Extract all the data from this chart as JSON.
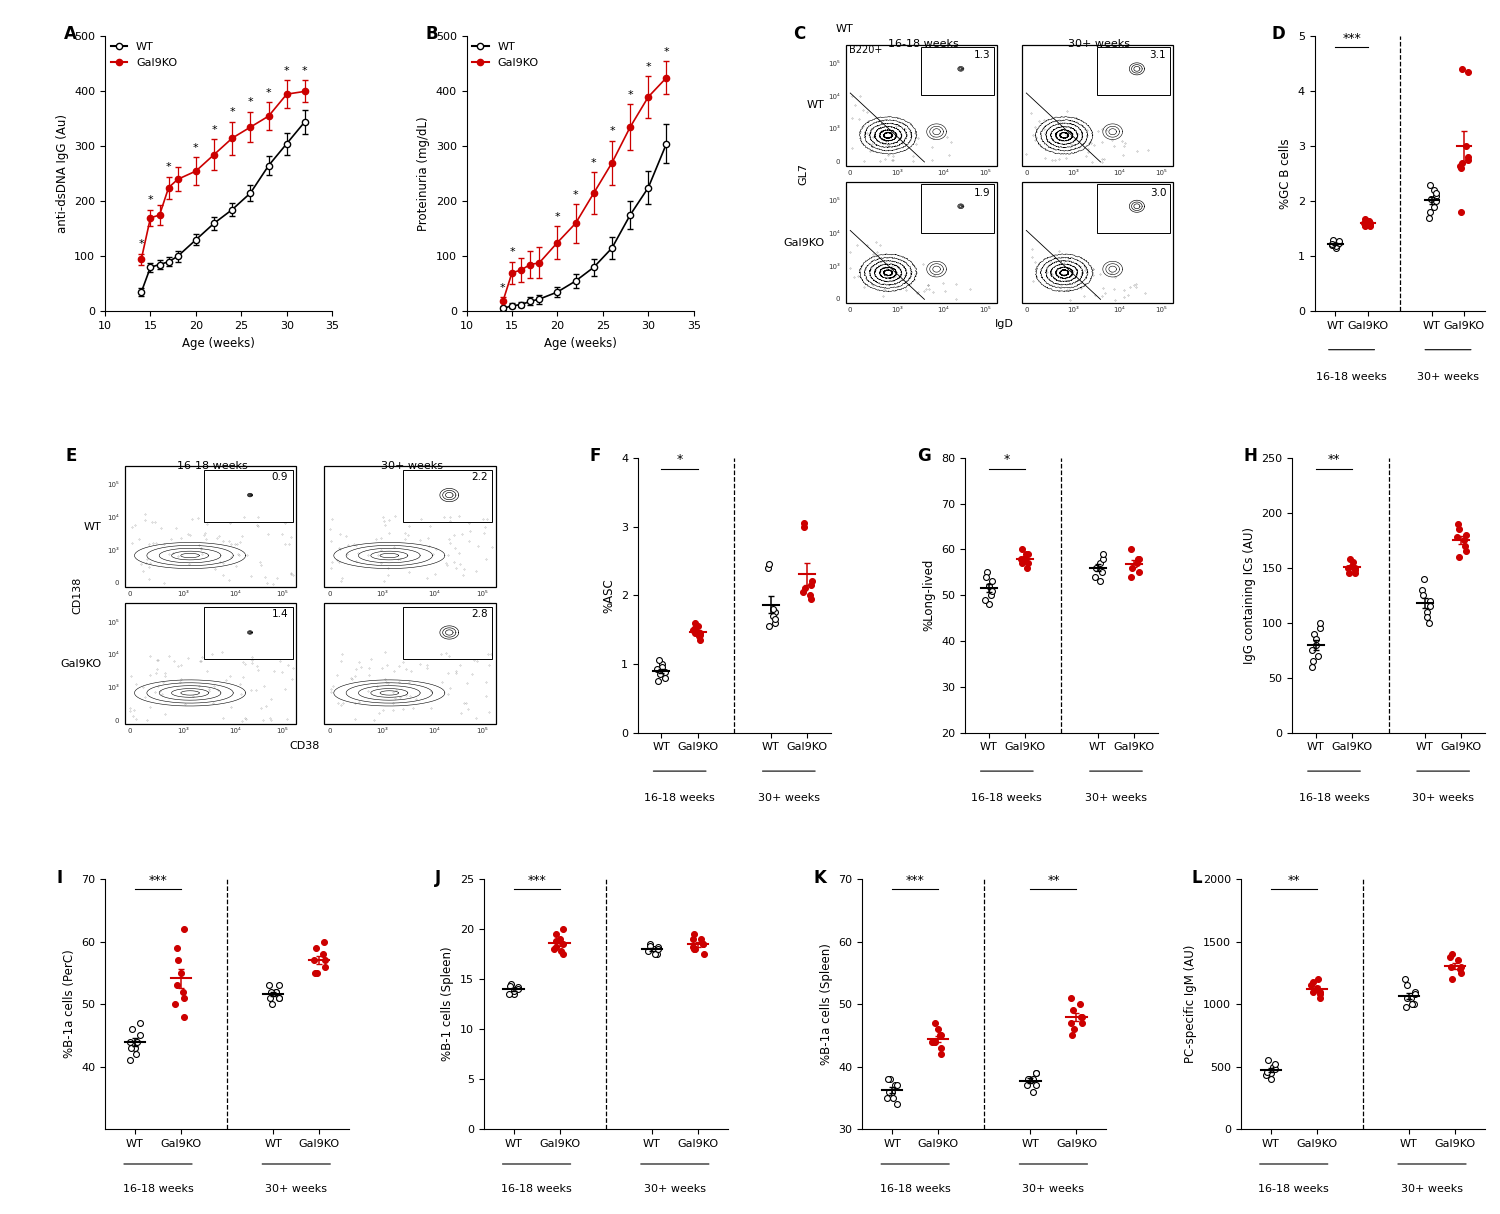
{
  "panel_A": {
    "label": "A",
    "xlabel": "Age (weeks)",
    "ylabel": "anti-dsDNA IgG (Au)",
    "xlim": [
      10,
      35
    ],
    "ylim": [
      0,
      500
    ],
    "xticks": [
      10,
      15,
      20,
      25,
      30,
      35
    ],
    "yticks": [
      0,
      100,
      200,
      300,
      400,
      500
    ],
    "wt_x": [
      14,
      15,
      16,
      17,
      18,
      20,
      22,
      24,
      26,
      28,
      30,
      32
    ],
    "wt_y": [
      35,
      80,
      85,
      90,
      100,
      130,
      160,
      185,
      215,
      265,
      305,
      345
    ],
    "wt_err": [
      8,
      8,
      8,
      8,
      10,
      10,
      12,
      12,
      15,
      18,
      20,
      22
    ],
    "ko_x": [
      14,
      15,
      16,
      17,
      18,
      20,
      22,
      24,
      26,
      28,
      30,
      32
    ],
    "ko_y": [
      95,
      170,
      175,
      225,
      240,
      255,
      285,
      315,
      335,
      355,
      395,
      400
    ],
    "ko_err": [
      10,
      15,
      18,
      20,
      22,
      25,
      28,
      30,
      28,
      25,
      25,
      20
    ],
    "sig_x": [
      14,
      15,
      17,
      20,
      22,
      24,
      26,
      28,
      30,
      32
    ],
    "legend_wt": "WT",
    "legend_ko": "Gal9KO"
  },
  "panel_B": {
    "label": "B",
    "xlabel": "Age (weeks)",
    "ylabel": "Proteinuria (mg/dL)",
    "xlim": [
      10,
      35
    ],
    "ylim": [
      0,
      500
    ],
    "xticks": [
      10,
      15,
      20,
      25,
      30,
      35
    ],
    "yticks": [
      0,
      100,
      200,
      300,
      400,
      500
    ],
    "wt_x": [
      14,
      15,
      16,
      17,
      18,
      20,
      22,
      24,
      26,
      28,
      30,
      32
    ],
    "wt_y": [
      5,
      10,
      12,
      18,
      22,
      35,
      55,
      80,
      115,
      175,
      225,
      305
    ],
    "wt_err": [
      3,
      5,
      5,
      7,
      8,
      10,
      12,
      15,
      20,
      25,
      30,
      35
    ],
    "ko_x": [
      14,
      15,
      16,
      17,
      18,
      20,
      22,
      24,
      26,
      28,
      30,
      32
    ],
    "ko_y": [
      18,
      70,
      75,
      85,
      88,
      125,
      160,
      215,
      270,
      335,
      390,
      425
    ],
    "ko_err": [
      8,
      20,
      22,
      25,
      28,
      30,
      35,
      38,
      40,
      42,
      38,
      30
    ],
    "sig_x": [
      14,
      15,
      20,
      22,
      24,
      26,
      28,
      30,
      32
    ],
    "legend_wt": "WT",
    "legend_ko": "Gal9KO"
  },
  "panel_C": {
    "label": "C",
    "col1_title": "16-18 weeks",
    "col2_title": "30+ weeks",
    "numbers": [
      [
        "1.3",
        "3.1"
      ],
      [
        "1.9",
        "3.0"
      ]
    ],
    "ylabel": "GL7",
    "xlabel": "IgD",
    "row_labels": [
      "WT",
      "Gal9KO"
    ],
    "b220_label": "B220+"
  },
  "panel_D": {
    "label": "D",
    "ylabel": "%GC B cells",
    "ylim": [
      0,
      5
    ],
    "yticks": [
      0,
      1,
      2,
      3,
      4,
      5
    ],
    "wt_early": [
      1.15,
      1.2,
      1.22,
      1.18,
      1.25,
      1.28,
      1.2,
      1.3,
      1.22
    ],
    "ko_early": [
      1.55,
      1.6,
      1.65,
      1.58,
      1.62,
      1.55,
      1.68,
      1.6,
      1.57
    ],
    "wt_late": [
      2.1,
      2.2,
      2.0,
      1.8,
      2.05,
      1.9,
      2.15,
      2.3,
      1.7
    ],
    "ko_late": [
      2.7,
      2.8,
      3.0,
      4.35,
      4.4,
      2.6,
      2.75,
      2.65,
      1.8
    ],
    "sig_early": "***",
    "sig_late": "",
    "xticklabels": [
      "WT",
      "Gal9KO",
      "WT",
      "Gal9KO"
    ],
    "group_labels": [
      "16-18 weeks",
      "30+ weeks"
    ]
  },
  "panel_E": {
    "label": "E",
    "col1_title": "16-18 weeks",
    "col2_title": "30+ weeks",
    "numbers": [
      [
        "0.9",
        "2.2"
      ],
      [
        "1.4",
        "2.8"
      ]
    ],
    "ylabel": "CD138",
    "xlabel": "CD38",
    "row_labels": [
      "WT",
      "Gal9KO"
    ]
  },
  "panel_F": {
    "label": "F",
    "ylabel": "%ASC",
    "ylim": [
      0,
      4
    ],
    "yticks": [
      0,
      1,
      2,
      3,
      4
    ],
    "wt_early": [
      1.0,
      0.9,
      0.85,
      0.95,
      0.8,
      0.88,
      0.75,
      1.05,
      0.92
    ],
    "ko_early": [
      1.45,
      1.5,
      1.4,
      1.35,
      1.55,
      1.6,
      1.45,
      1.42,
      1.52
    ],
    "wt_late": [
      1.75,
      1.8,
      1.6,
      2.4,
      2.45,
      1.7,
      1.65,
      1.55
    ],
    "ko_late": [
      2.1,
      2.15,
      2.0,
      2.2,
      3.0,
      3.05,
      1.95,
      2.05
    ],
    "sig_early": "*",
    "sig_late": "",
    "xticklabels": [
      "WT",
      "Gal9KO",
      "WT",
      "Gal9KO"
    ],
    "group_labels": [
      "16-18 weeks",
      "30+ weeks"
    ]
  },
  "panel_G": {
    "label": "G",
    "ylabel": "%Long-lived",
    "ylim": [
      20,
      80
    ],
    "yticks": [
      20,
      30,
      40,
      50,
      60,
      70,
      80
    ],
    "wt_early": [
      52,
      50,
      55,
      48,
      51,
      53,
      49,
      54
    ],
    "ko_early": [
      57,
      58,
      59,
      56,
      58,
      57,
      60,
      59
    ],
    "wt_late": [
      55,
      57,
      58,
      54,
      56,
      53,
      59
    ],
    "ko_late": [
      56,
      58,
      57,
      55,
      60,
      54,
      58
    ],
    "sig_early": "*",
    "sig_late": "",
    "xticklabels": [
      "WT",
      "Gal9KO",
      "WT",
      "Gal9KO"
    ],
    "group_labels": [
      "16-18 weeks",
      "30+ weeks"
    ]
  },
  "panel_H": {
    "label": "H",
    "ylabel": "IgG containing ICs (AU)",
    "ylim": [
      0,
      250
    ],
    "yticks": [
      0,
      50,
      100,
      150,
      200,
      250
    ],
    "wt_early": [
      80,
      70,
      90,
      85,
      95,
      100,
      75,
      65,
      60
    ],
    "ko_early": [
      145,
      150,
      155,
      148,
      152,
      158,
      145,
      150
    ],
    "wt_late": [
      100,
      110,
      120,
      130,
      140,
      105,
      115,
      125
    ],
    "ko_late": [
      160,
      165,
      175,
      180,
      185,
      190,
      170,
      178
    ],
    "sig_early": "**",
    "sig_late": "",
    "xticklabels": [
      "WT",
      "Gal9KO",
      "WT",
      "Gal9KO"
    ],
    "group_labels": [
      "16-18 weeks",
      "30+ weeks"
    ]
  },
  "panel_I": {
    "label": "I",
    "ylabel": "%B-1a cells (PerC)",
    "ylim": [
      30,
      70
    ],
    "yticks": [
      40,
      50,
      60,
      70
    ],
    "wt_early": [
      42,
      44,
      46,
      43,
      45,
      47,
      44,
      43,
      41
    ],
    "ko_early": [
      48,
      50,
      52,
      51,
      55,
      57,
      59,
      62,
      53
    ],
    "wt_late": [
      51,
      52,
      53,
      51,
      50,
      52,
      51,
      52,
      53
    ],
    "ko_late": [
      55,
      57,
      58,
      56,
      59,
      55,
      60,
      57
    ],
    "sig_early": "***",
    "sig_late": "",
    "xticklabels": [
      "WT",
      "Gal9KO",
      "WT",
      "Gal9KO"
    ],
    "group_labels": [
      "16-18 weeks",
      "30+ weeks"
    ]
  },
  "panel_J": {
    "label": "J",
    "ylabel": "%B-1 cells (Spleen)",
    "ylim": [
      0,
      25
    ],
    "yticks": [
      0,
      5,
      10,
      15,
      20,
      25
    ],
    "wt_early": [
      13.5,
      14,
      14.5,
      13.8,
      14.2,
      14.0,
      13.5,
      14.3
    ],
    "ko_early": [
      17.5,
      18,
      17.8,
      18.5,
      19,
      18.2,
      19.5,
      20,
      18.8
    ],
    "wt_late": [
      17.5,
      18,
      18.2,
      17.8,
      18.5,
      17.5,
      18,
      18.3
    ],
    "ko_late": [
      18,
      18.5,
      19,
      17.5,
      19.5,
      18,
      18.5,
      19,
      18.2
    ],
    "sig_early": "***",
    "sig_late": "",
    "xticklabels": [
      "WT",
      "Gal9KO",
      "WT",
      "Gal9KO"
    ],
    "group_labels": [
      "16-18 weeks",
      "30+ weeks"
    ]
  },
  "panel_K": {
    "label": "K",
    "ylabel": "%B-1a cells (Spleen)",
    "ylim": [
      30,
      70
    ],
    "yticks": [
      30,
      40,
      50,
      60,
      70
    ],
    "wt_early": [
      35,
      37,
      38,
      36,
      37,
      34,
      38,
      36,
      35
    ],
    "ko_early": [
      42,
      44,
      45,
      43,
      46,
      44,
      47,
      45,
      44
    ],
    "wt_late": [
      37,
      38,
      39,
      37,
      38,
      36,
      39,
      38
    ],
    "ko_late": [
      46,
      48,
      50,
      47,
      49,
      45,
      48,
      47,
      51
    ],
    "sig_early": "***",
    "sig_late": "**",
    "xticklabels": [
      "WT",
      "Gal9KO",
      "WT",
      "Gal9KO"
    ],
    "group_labels": [
      "16-18 weeks",
      "30+ weeks"
    ]
  },
  "panel_L": {
    "label": "L",
    "ylabel": "PC-specific IgM (AU)",
    "ylim": [
      0,
      2000
    ],
    "yticks": [
      0,
      500,
      1000,
      1500,
      2000
    ],
    "wt_early": [
      400,
      500,
      550,
      450,
      480,
      520,
      430,
      460
    ],
    "ko_early": [
      1100,
      1150,
      1200,
      1050,
      1130,
      1180,
      1100,
      1080
    ],
    "wt_late": [
      1000,
      1050,
      1100,
      980,
      1050,
      1000,
      1080,
      1150,
      1200
    ],
    "ko_late": [
      1200,
      1300,
      1350,
      1250,
      1400,
      1300,
      1280,
      1380
    ],
    "sig_early": "**",
    "sig_late": "",
    "xticklabels": [
      "WT",
      "Gal9KO",
      "WT",
      "Gal9KO"
    ],
    "group_labels": [
      "16-18 weeks",
      "30+ weeks"
    ]
  },
  "colors": {
    "wt": "#000000",
    "ko": "#cc0000"
  }
}
